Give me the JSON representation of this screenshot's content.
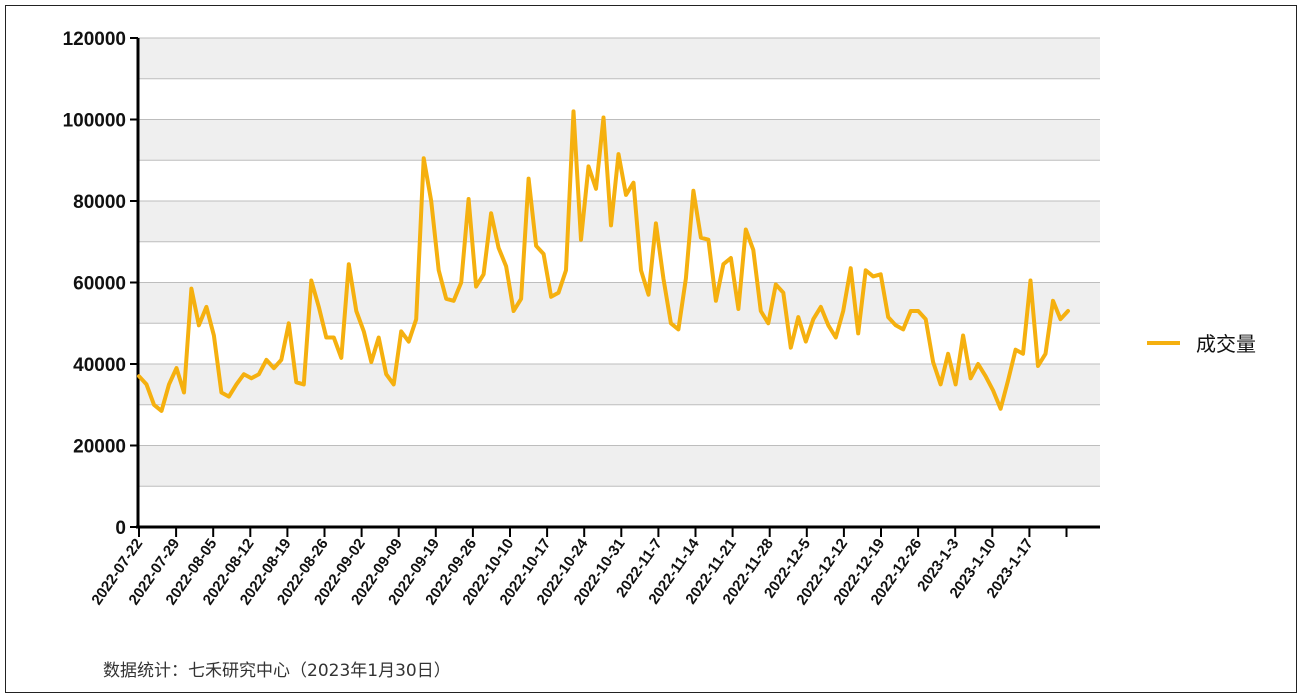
{
  "chart_data": {
    "type": "line",
    "title": "",
    "xlabel": "",
    "ylabel": "",
    "ylim": [
      0,
      120000
    ],
    "yticks": [
      0,
      20000,
      40000,
      60000,
      80000,
      100000,
      120000
    ],
    "ytick_labels": [
      "0",
      "20000",
      "40000",
      "60000",
      "80000",
      "100000",
      "120000"
    ],
    "x_tick_labels": [
      "2022-07-22",
      "2022-07-29",
      "2022-08-05",
      "2022-08-12",
      "2022-08-19",
      "2022-08-26",
      "2022-09-02",
      "2022-09-09",
      "2022-09-19",
      "2022-09-26",
      "2022-10-10",
      "2022-10-17",
      "2022-10-24",
      "2022-10-31",
      "2022-11-7",
      "2022-11-14",
      "2022-11-21",
      "2022-11-28",
      "2022-12-5",
      "2022-12-12",
      "2022-12-19",
      "2022-12-26",
      "2023-1-3",
      "2023-1-10",
      "2023-1-17"
    ],
    "grid": "horizontal, alternating shaded bands",
    "legend_position": "right",
    "series": [
      {
        "name": "成交量",
        "color": "#F5B00F",
        "values": [
          37000,
          35000,
          30000,
          28500,
          35000,
          39000,
          33000,
          58500,
          49500,
          54000,
          47000,
          33000,
          32000,
          35000,
          37500,
          36500,
          37500,
          41000,
          39000,
          41000,
          50000,
          35500,
          35000,
          60500,
          54000,
          46500,
          46500,
          41500,
          64500,
          53000,
          48000,
          40500,
          46500,
          37500,
          35000,
          48000,
          45500,
          51000,
          90500,
          80000,
          63000,
          56000,
          55500,
          60000,
          80500,
          59000,
          62000,
          77000,
          68500,
          64000,
          53000,
          56000,
          85500,
          69000,
          67000,
          56500,
          57500,
          63000,
          102000,
          70500,
          88500,
          83000,
          100500,
          74000,
          91500,
          81500,
          84500,
          63000,
          57000,
          74500,
          61000,
          50000,
          48500,
          61000,
          82500,
          71000,
          70500,
          55500,
          64500,
          66000,
          53500,
          73000,
          68000,
          53000,
          50000,
          59500,
          57500,
          44000,
          51500,
          45500,
          51000,
          54000,
          49500,
          46500,
          53000,
          63500,
          47500,
          63000,
          61500,
          62000,
          51500,
          49500,
          48500,
          53000,
          53000,
          51000,
          40500,
          35000,
          42500,
          35000,
          47000,
          36500,
          40000,
          37000,
          33500,
          29000,
          36000,
          43500,
          42500,
          60500,
          39500,
          42500,
          55500,
          51000,
          53000
        ]
      }
    ]
  },
  "legend": {
    "label": "成交量"
  },
  "source_note": "数据统计：七禾研究中心（2023年1月30日）"
}
